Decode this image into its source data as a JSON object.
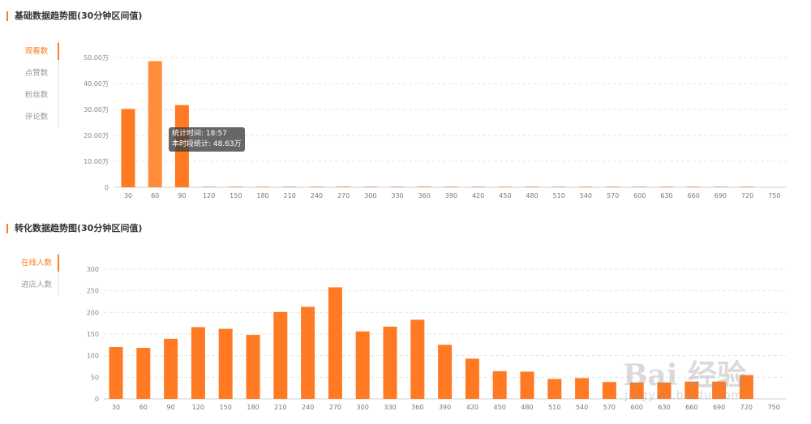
{
  "chart_data": [
    {
      "type": "bar",
      "title": "基础数据趋势图(30分钟区间值)",
      "tabs": [
        {
          "label": "观看数",
          "active": true
        },
        {
          "label": "点赞数",
          "active": false
        },
        {
          "label": "粉丝数",
          "active": false
        },
        {
          "label": "评论数",
          "active": false
        }
      ],
      "categories": [
        "30",
        "60",
        "90",
        "120",
        "150",
        "180",
        "210",
        "240",
        "270",
        "300",
        "330",
        "360",
        "390",
        "420",
        "450",
        "480",
        "510",
        "540",
        "570",
        "600",
        "630",
        "660",
        "690",
        "720",
        "750"
      ],
      "values": [
        30.2,
        48.63,
        31.7,
        0.3,
        0.3,
        0.3,
        0.3,
        0.3,
        0.4,
        0.3,
        0.3,
        0.4,
        0.2,
        0.1,
        0.1,
        0.1,
        0.1,
        0.1,
        0.1,
        0.1,
        0.1,
        0.1,
        0.1,
        0.1,
        0
      ],
      "yticks": [
        "0",
        "10.00万",
        "20.00万",
        "30.00万",
        "40.00万",
        "50.00万"
      ],
      "ylim": [
        0,
        50
      ],
      "grid": true,
      "color": "#ff7a22",
      "highlight_index": 1,
      "highlight_color": "#ff8c3a",
      "tooltip": {
        "line1": "统计时间: 18:57",
        "line2": "本时段统计: 48.63万"
      }
    },
    {
      "type": "bar",
      "title": "转化数据趋势图(30分钟区间值)",
      "tabs": [
        {
          "label": "在线人数",
          "active": true
        },
        {
          "label": "进店人数",
          "active": false
        }
      ],
      "categories": [
        "30",
        "60",
        "90",
        "120",
        "150",
        "180",
        "210",
        "240",
        "270",
        "300",
        "330",
        "360",
        "390",
        "420",
        "450",
        "480",
        "510",
        "540",
        "570",
        "600",
        "630",
        "660",
        "690",
        "720",
        "750"
      ],
      "values": [
        120,
        118,
        139,
        166,
        162,
        148,
        201,
        213,
        258,
        156,
        167,
        183,
        125,
        93,
        64,
        63,
        46,
        48,
        39,
        38,
        38,
        40,
        40,
        55,
        0
      ],
      "yticks": [
        "0",
        "50",
        "100",
        "150",
        "200",
        "250",
        "300"
      ],
      "ylim": [
        0,
        300
      ],
      "grid": true,
      "color": "#ff7a22"
    }
  ],
  "watermark": {
    "brand": "Bai 经验",
    "url": "jingyan.baidu.com"
  }
}
